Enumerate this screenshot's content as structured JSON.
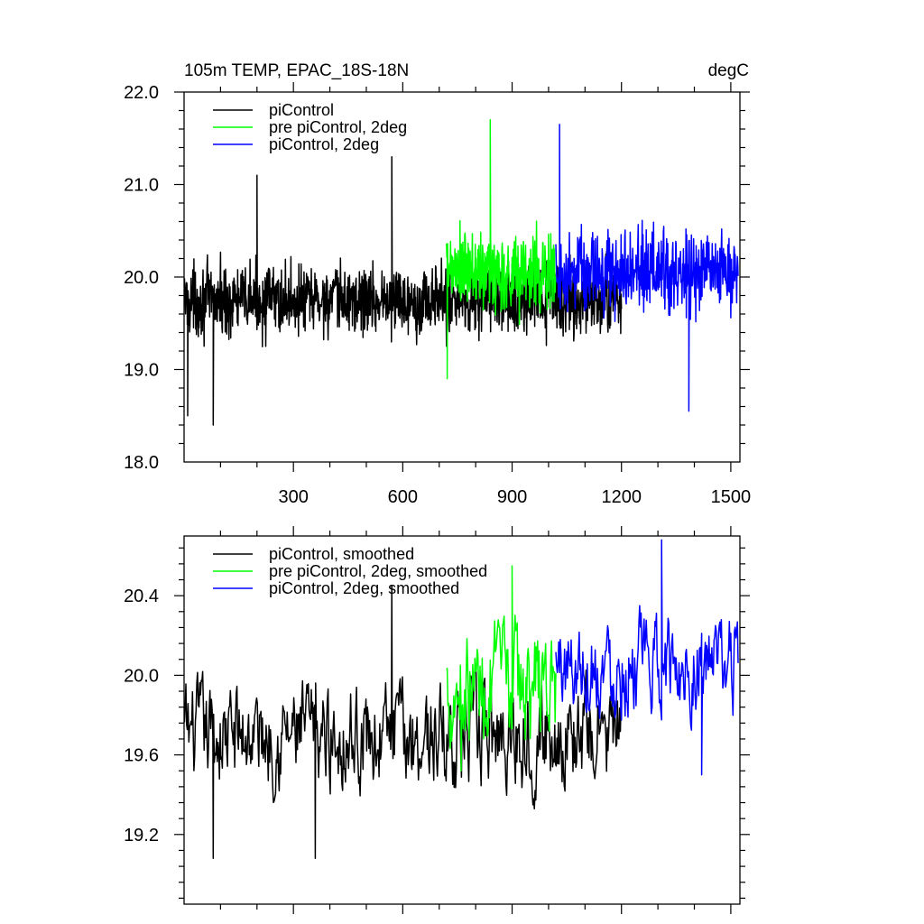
{
  "colors": {
    "black": "#000000",
    "green": "#00ff00",
    "blue": "#0000ff"
  },
  "chart_data": [
    {
      "type": "line",
      "title": "105m TEMP, EPAC_18S-18N",
      "units": "degC",
      "xlim": [
        0,
        1525
      ],
      "ylim": [
        18.0,
        22.0
      ],
      "xticks": [
        300,
        600,
        900,
        1200,
        1500
      ],
      "xtick_labels": [
        "300",
        "600",
        "900",
        "1200",
        "1500"
      ],
      "yticks": [
        18.0,
        19.0,
        20.0,
        21.0,
        22.0
      ],
      "ytick_labels": [
        "18.0",
        "19.0",
        "20.0",
        "21.0",
        "22.0"
      ],
      "legend_position": "top-left",
      "series": [
        {
          "name": "piControl",
          "color": "#000000",
          "x_range": [
            1,
            1200
          ],
          "mean": 19.75,
          "spread": 0.45,
          "peaks": [
            [
              570,
              21.3
            ],
            [
              200,
              21.1
            ]
          ],
          "troughs": [
            [
              80,
              18.4
            ],
            [
              10,
              18.5
            ]
          ]
        },
        {
          "name": "pre piControl, 2deg",
          "color": "#00ff00",
          "x_range": [
            720,
            1020
          ],
          "mean": 20.05,
          "spread": 0.55,
          "peaks": [
            [
              840,
              21.7
            ]
          ],
          "troughs": [
            [
              722,
              18.9
            ]
          ]
        },
        {
          "name": "piControl, 2deg",
          "color": "#0000ff",
          "x_range": [
            1020,
            1520
          ],
          "mean": 20.05,
          "spread": 0.5,
          "peaks": [
            [
              1030,
              21.65
            ]
          ],
          "troughs": [
            [
              1385,
              18.55
            ]
          ]
        }
      ]
    },
    {
      "type": "line",
      "title": "",
      "xlim": [
        0,
        1525
      ],
      "ylim": [
        18.85,
        20.7
      ],
      "xticks": [
        300,
        600,
        900,
        1200,
        1500
      ],
      "xtick_labels": [],
      "yticks": [
        19.2,
        19.6,
        20.0,
        20.4
      ],
      "ytick_labels": [
        "19.2",
        "19.6",
        "20.0",
        "20.4"
      ],
      "legend_position": "top-left",
      "series": [
        {
          "name": "piControl, smoothed",
          "color": "#000000",
          "x_range": [
            1,
            1200
          ],
          "mean": 19.7,
          "spread": 0.22,
          "peaks": [
            [
              570,
              20.45
            ]
          ],
          "troughs": [
            [
              80,
              19.08
            ],
            [
              360,
              19.08
            ]
          ]
        },
        {
          "name": "pre piControl, 2deg, smoothed",
          "color": "#00ff00",
          "x_range": [
            720,
            1020
          ],
          "mean": 19.95,
          "spread": 0.25,
          "peaks": [
            [
              900,
              20.55
            ]
          ],
          "troughs": [
            [
              760,
              19.52
            ]
          ]
        },
        {
          "name": "piControl, 2deg, smoothed",
          "color": "#0000ff",
          "x_range": [
            1020,
            1520
          ],
          "mean": 20.05,
          "spread": 0.2,
          "peaks": [
            [
              1310,
              20.68
            ]
          ],
          "troughs": [
            [
              1420,
              19.5
            ]
          ]
        }
      ]
    }
  ]
}
